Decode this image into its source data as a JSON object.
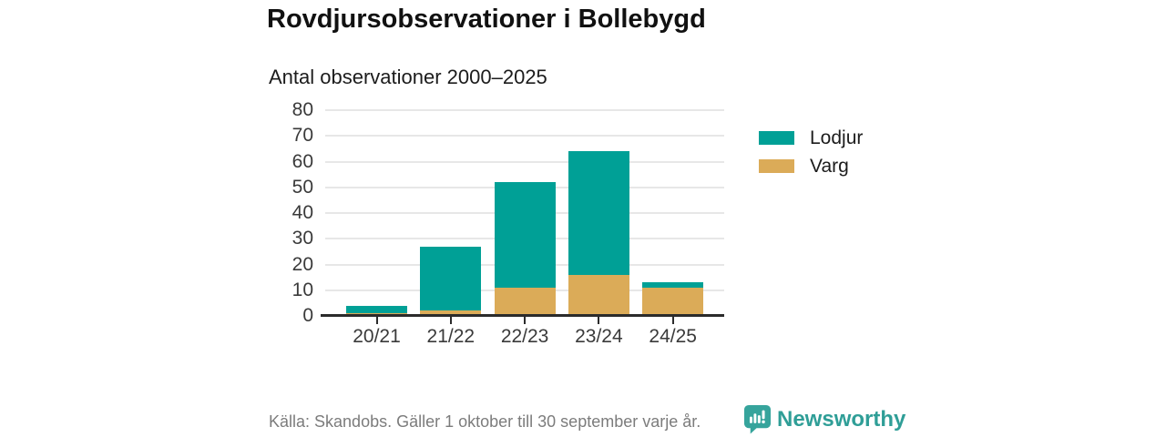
{
  "header": {
    "title": "Rovdjursobservationer i Bollebygd",
    "subtitle": "Antal observationer 2000–2025"
  },
  "chart_data": {
    "type": "bar",
    "stacked": true,
    "title": "Antal observationer 2000–2025",
    "categories": [
      "20/21",
      "21/22",
      "22/23",
      "23/24",
      "24/25"
    ],
    "series": [
      {
        "name": "Varg",
        "color": "#dbab58",
        "values": [
          1,
          2,
          11,
          16,
          11
        ]
      },
      {
        "name": "Lodjur",
        "color": "#00a096",
        "values": [
          3,
          25,
          41,
          48,
          2
        ]
      }
    ],
    "totals": [
      4,
      27,
      52,
      64,
      13
    ],
    "xlabel": "",
    "ylabel": "",
    "ylim": [
      0,
      80
    ],
    "yticks": [
      0,
      10,
      20,
      30,
      40,
      50,
      60,
      70,
      80
    ],
    "grid": true,
    "legend_position": "right"
  },
  "legend": {
    "items": [
      {
        "label": "Lodjur",
        "color": "#00a096"
      },
      {
        "label": "Varg",
        "color": "#dbab58"
      }
    ]
  },
  "footer": {
    "source": "Källa: Skandobs. Gäller 1 oktober till 30 september varje år.",
    "brand": "Newsworthy"
  },
  "colors": {
    "bar_teal": "#00a096",
    "bar_gold": "#dbab58",
    "brand_teal": "#36a49c",
    "axis": "#2b2b2b",
    "gridline": "#e7e7e7",
    "text_dark": "#1c1c1c",
    "text_muted": "#7c7c7c"
  }
}
